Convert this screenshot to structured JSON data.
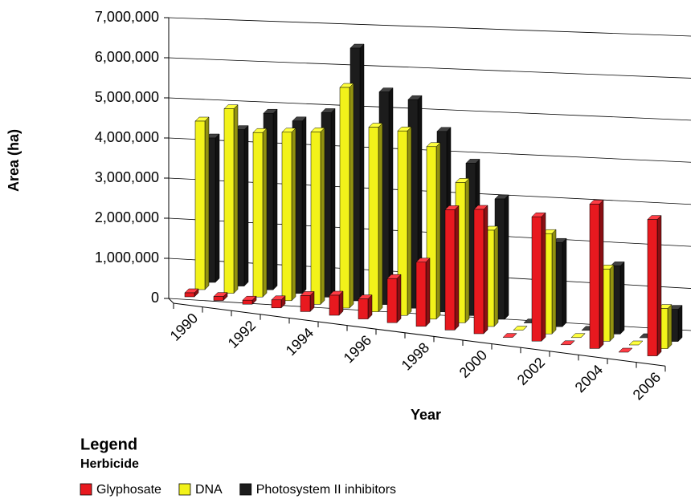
{
  "chart_data": {
    "type": "bar3d",
    "x_label": "Year",
    "y_label": "Area (ha)",
    "legend_title": "Legend",
    "legend_subtitle": "Herbicide",
    "categories": [
      "1990",
      null,
      "1992",
      null,
      "1994",
      null,
      "1996",
      null,
      "1998",
      null,
      "2000",
      null,
      "2002",
      null,
      "2004",
      null,
      "2006"
    ],
    "series": [
      {
        "name": "Glyphosate",
        "color": "#e8191f",
        "values": [
          100000,
          100000,
          100000,
          200000,
          400000,
          500000,
          500000,
          1100000,
          1600000,
          3000000,
          3100000,
          0,
          3100000,
          0,
          3600000,
          0,
          3400000
        ]
      },
      {
        "name": "DNA",
        "color": "#f2f21a",
        "values": [
          4200000,
          4600000,
          4100000,
          4200000,
          4300000,
          5500000,
          4600000,
          4600000,
          4300000,
          3500000,
          2400000,
          0,
          2500000,
          0,
          1800000,
          0,
          1000000
        ]
      },
      {
        "name": "Photosystem II inhibitors",
        "color": "#1c1c1c",
        "values": [
          3600000,
          3900000,
          4400000,
          4300000,
          4600000,
          6300000,
          5300000,
          5200000,
          4500000,
          3800000,
          3000000,
          0,
          2100000,
          0,
          1700000,
          0,
          800000
        ]
      }
    ],
    "ylim": [
      0,
      7000000
    ],
    "yticks": [
      0,
      {
        "value": 1000000,
        "label": "1,000,000"
      },
      {
        "value": 2000000,
        "label": "2,000,000"
      },
      {
        "value": 3000000,
        "label": "3,000,000"
      },
      {
        "value": 4000000,
        "label": "4,000,000"
      },
      {
        "value": 5000000,
        "label": "5,000,000"
      },
      {
        "value": 6000000,
        "label": "6,000,000"
      },
      {
        "value": 7000000,
        "label": "7,000,000"
      }
    ],
    "grid": true
  }
}
